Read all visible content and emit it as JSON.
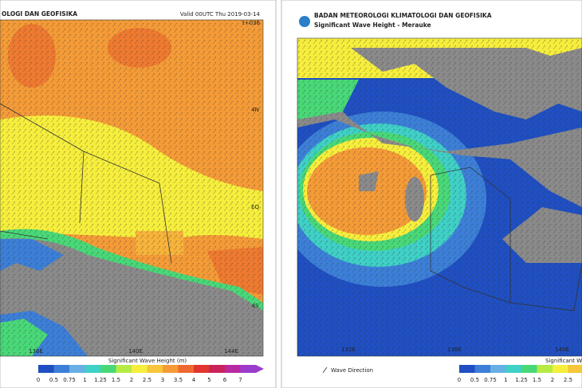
{
  "left_panel": {
    "agency": "OLOGI DAN GEOFISIKA",
    "valid": "Valid 00UTC Thu 2019-03-14",
    "lead": "t+036",
    "lat_labels": [
      "4N",
      "EQ",
      "4S"
    ],
    "lon_labels": [
      "136E",
      "140E",
      "144E"
    ],
    "legend_title": "Significant Wave Height (m)",
    "colorbar": [
      {
        "label": "0",
        "color": "#1f4fc2"
      },
      {
        "label": "0.5",
        "color": "#3c7fd8"
      },
      {
        "label": "0.75",
        "color": "#67b0e6"
      },
      {
        "label": "1",
        "color": "#3fd0c6"
      },
      {
        "label": "1.25",
        "color": "#49d878"
      },
      {
        "label": "1.5",
        "color": "#b6ea45"
      },
      {
        "label": "2",
        "color": "#f6ee3c"
      },
      {
        "label": "2.5",
        "color": "#f7c63a"
      },
      {
        "label": "3",
        "color": "#f49b37"
      },
      {
        "label": "3.5",
        "color": "#ee6a2e"
      },
      {
        "label": "4",
        "color": "#e0362d"
      },
      {
        "label": "5",
        "color": "#c8235a"
      },
      {
        "label": "6",
        "color": "#b72aa0"
      },
      {
        "label": "7",
        "color": "#9a3dcc"
      }
    ]
  },
  "right_panel": {
    "agency": "BADAN METEOROLOGI KLIMATOLOGI DAN GEOFISIKA",
    "subtitle": "Significant Wave Height - Merauke",
    "lon_labels": [
      "132E",
      "136E",
      "140E"
    ],
    "direction_legend": "Wave Direction",
    "legend_title": "Significant Wave Height",
    "colorbar": [
      {
        "label": "0",
        "color": "#1f4fc2"
      },
      {
        "label": "0.5",
        "color": "#3c7fd8"
      },
      {
        "label": "0.75",
        "color": "#67b0e6"
      },
      {
        "label": "1",
        "color": "#3fd0c6"
      },
      {
        "label": "1.25",
        "color": "#49d878"
      },
      {
        "label": "1.5",
        "color": "#b6ea45"
      },
      {
        "label": "2",
        "color": "#f6ee3c"
      },
      {
        "label": "2.5",
        "color": "#f7c63a"
      }
    ]
  }
}
